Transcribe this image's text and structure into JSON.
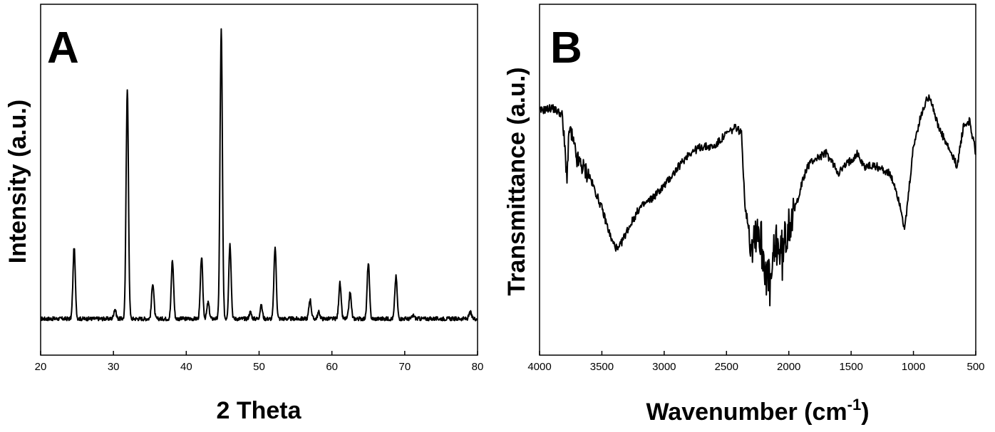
{
  "chart_data": [
    {
      "type": "line",
      "panel_label": "A",
      "xlabel": "2 Theta",
      "ylabel": "Intensity (a.u.)",
      "xlim": [
        20,
        80
      ],
      "ylim": [
        0,
        100
      ],
      "x_ticks": [
        20,
        30,
        40,
        50,
        60,
        70,
        80
      ],
      "y_ticks": [],
      "grid": false,
      "legend": "none",
      "baseline": 11,
      "peaks": [
        {
          "x": 24.6,
          "y": 33
        },
        {
          "x": 30.2,
          "y": 14
        },
        {
          "x": 31.9,
          "y": 82
        },
        {
          "x": 35.4,
          "y": 22
        },
        {
          "x": 38.1,
          "y": 29
        },
        {
          "x": 42.1,
          "y": 30
        },
        {
          "x": 43.0,
          "y": 16
        },
        {
          "x": 44.8,
          "y": 100
        },
        {
          "x": 46.0,
          "y": 34
        },
        {
          "x": 48.8,
          "y": 13
        },
        {
          "x": 50.3,
          "y": 15
        },
        {
          "x": 52.2,
          "y": 33
        },
        {
          "x": 57.0,
          "y": 17
        },
        {
          "x": 58.2,
          "y": 13
        },
        {
          "x": 61.1,
          "y": 22
        },
        {
          "x": 62.5,
          "y": 19
        },
        {
          "x": 65.0,
          "y": 28
        },
        {
          "x": 68.8,
          "y": 24
        },
        {
          "x": 71.2,
          "y": 12
        },
        {
          "x": 79.0,
          "y": 13
        }
      ]
    },
    {
      "type": "line",
      "panel_label": "B",
      "xlabel": "Wavenumber (cm",
      "xlabel_superscript": "-1",
      "xlabel_suffix": ")",
      "ylabel": "Transmittance (a.u.)",
      "xlim": [
        4000,
        500
      ],
      "ylim": [
        0,
        100
      ],
      "x_reversed": true,
      "x_ticks": [
        4000,
        3500,
        3000,
        2500,
        2000,
        1500,
        1000,
        500
      ],
      "y_ticks": [],
      "grid": false,
      "legend": "none",
      "x": [
        4000,
        3900,
        3820,
        3780,
        3760,
        3700,
        3600,
        3500,
        3420,
        3370,
        3300,
        3200,
        3100,
        3000,
        2900,
        2800,
        2700,
        2600,
        2500,
        2420,
        2380,
        2350,
        2300,
        2250,
        2200,
        2150,
        2100,
        2050,
        2000,
        1950,
        1900,
        1850,
        1800,
        1700,
        1600,
        1500,
        1450,
        1400,
        1300,
        1200,
        1150,
        1100,
        1070,
        1000,
        950,
        900,
        870,
        800,
        700,
        650,
        600,
        550,
        500
      ],
      "y": [
        75,
        76,
        74,
        55,
        70,
        60,
        55,
        45,
        35,
        32,
        38,
        45,
        48,
        52,
        57,
        62,
        64,
        64,
        68,
        70,
        68,
        45,
        35,
        40,
        30,
        20,
        35,
        30,
        42,
        45,
        52,
        58,
        60,
        62,
        56,
        60,
        62,
        58,
        58,
        56,
        52,
        45,
        38,
        64,
        72,
        78,
        80,
        70,
        62,
        58,
        70,
        72,
        62
      ]
    }
  ]
}
